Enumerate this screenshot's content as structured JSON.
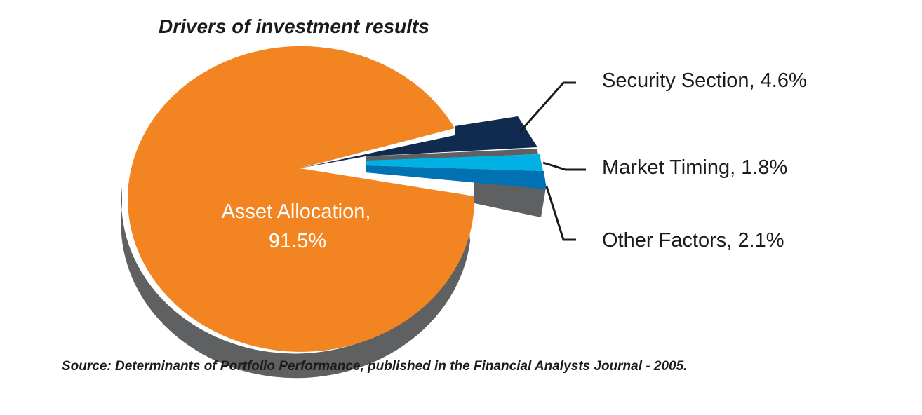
{
  "chart_data": {
    "type": "pie",
    "title": "Drivers of investment results",
    "slices": [
      {
        "label": "Asset Allocation,",
        "value_text": "91.5%",
        "value": 91.5,
        "color": "#f28522"
      },
      {
        "label": "Security Section,",
        "value_text": "4.6%",
        "value": 4.6,
        "color": "#102b4f"
      },
      {
        "label": "Market Timing,",
        "value_text": "1.8%",
        "value": 1.8,
        "color": "#00b2e3"
      },
      {
        "label": "Other Factors,",
        "value_text": "2.1%",
        "value": 2.1,
        "color": "#0071b3"
      }
    ],
    "source": "Source: Determinants of Portfolio Performance, published in the Financial Analysts Journal - 2005."
  },
  "colors": {
    "shadow": "#5e6061",
    "leader": "#1b1b1b"
  }
}
